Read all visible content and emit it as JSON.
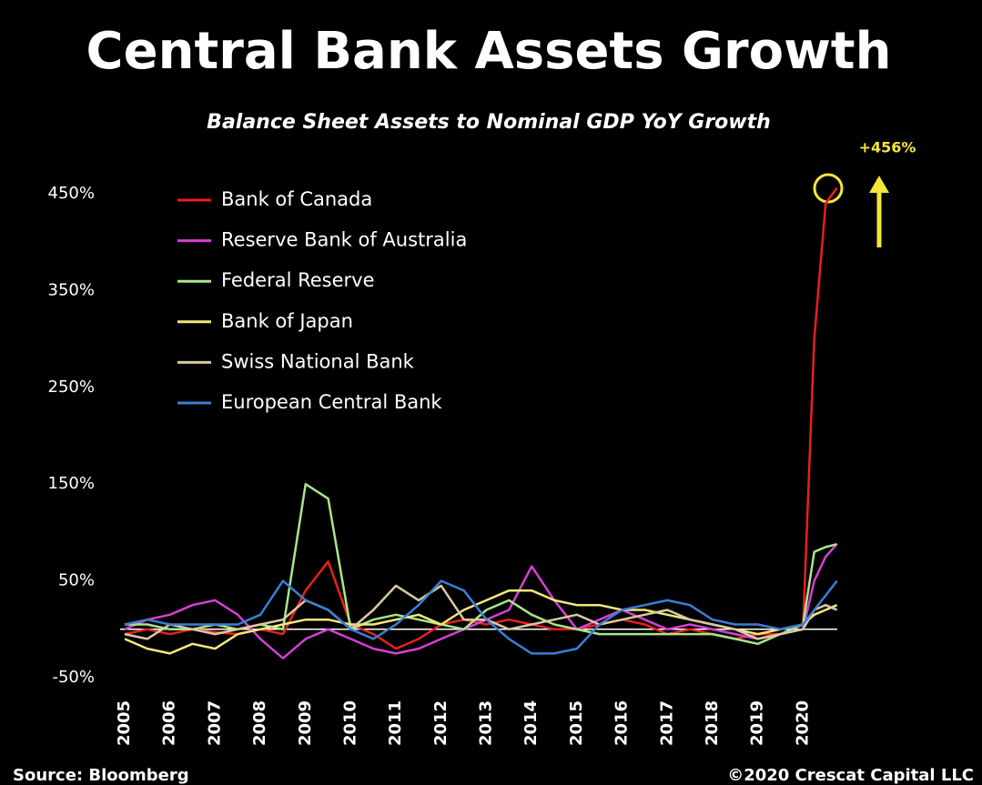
{
  "chart_data": {
    "type": "line",
    "title": "Central Bank Assets Growth",
    "subtitle": "Balance Sheet Assets to Nominal GDP YoY Growth",
    "annotation": "+456%",
    "source": "Source: Bloomberg",
    "credit": "©2020 Crescat Capital LLC",
    "x": [
      2005,
      2005.5,
      2006,
      2006.5,
      2007,
      2007.5,
      2008,
      2008.5,
      2009,
      2009.5,
      2010,
      2010.5,
      2011,
      2011.5,
      2012,
      2012.5,
      2013,
      2013.5,
      2014,
      2014.5,
      2015,
      2015.5,
      2016,
      2016.5,
      2017,
      2017.5,
      2018,
      2018.5,
      2019,
      2019.5,
      2020,
      2020.25,
      2020.5,
      2020.75
    ],
    "xlim": [
      2005,
      2021
    ],
    "xticks": [
      2005,
      2006,
      2007,
      2008,
      2009,
      2010,
      2011,
      2012,
      2013,
      2014,
      2015,
      2016,
      2017,
      2018,
      2019,
      2020
    ],
    "ylim": [
      -50,
      450
    ],
    "yticks": [
      {
        "value": -50,
        "label": "-50%"
      },
      {
        "value": 50,
        "label": "50%"
      },
      {
        "value": 150,
        "label": "150%"
      },
      {
        "value": 250,
        "label": "250%"
      },
      {
        "value": 350,
        "label": "350%"
      },
      {
        "value": 450,
        "label": "450%"
      }
    ],
    "baseline": 0,
    "grid": false,
    "legend": "top-left",
    "series": [
      {
        "name": "Bank of Canada",
        "color": "#e8201c",
        "values": [
          -5,
          0,
          -5,
          0,
          -3,
          -5,
          0,
          -5,
          40,
          70,
          5,
          -5,
          -20,
          -10,
          5,
          10,
          5,
          10,
          5,
          0,
          0,
          5,
          10,
          5,
          -5,
          0,
          -5,
          -10,
          -5,
          -5,
          0,
          300,
          440,
          456
        ]
      },
      {
        "name": "Reserve Bank of Australia",
        "color": "#d63fd6",
        "values": [
          0,
          10,
          15,
          25,
          30,
          15,
          -10,
          -30,
          -10,
          0,
          -10,
          -20,
          -25,
          -20,
          -10,
          0,
          10,
          20,
          65,
          30,
          0,
          10,
          20,
          10,
          0,
          5,
          0,
          -5,
          -10,
          -5,
          0,
          50,
          75,
          88
        ]
      },
      {
        "name": "Federal Reserve",
        "color": "#a8e68a",
        "values": [
          5,
          5,
          0,
          0,
          5,
          0,
          5,
          0,
          150,
          135,
          0,
          10,
          15,
          10,
          5,
          0,
          20,
          30,
          15,
          5,
          0,
          -5,
          -5,
          -5,
          -5,
          -5,
          -5,
          -10,
          -15,
          -5,
          5,
          80,
          85,
          88
        ]
      },
      {
        "name": "Bank of Japan",
        "color": "#f2e87a",
        "values": [
          -10,
          -20,
          -25,
          -15,
          -20,
          -5,
          0,
          5,
          10,
          10,
          5,
          5,
          10,
          15,
          5,
          20,
          30,
          40,
          40,
          30,
          25,
          25,
          20,
          20,
          15,
          10,
          5,
          0,
          -5,
          0,
          5,
          15,
          20,
          25
        ]
      },
      {
        "name": "Swiss National Bank",
        "color": "#d9c9a0",
        "values": [
          -5,
          -10,
          5,
          0,
          -5,
          0,
          5,
          10,
          30,
          20,
          0,
          20,
          45,
          30,
          45,
          10,
          10,
          0,
          5,
          10,
          15,
          5,
          10,
          15,
          20,
          10,
          5,
          0,
          -10,
          -5,
          0,
          20,
          25,
          20
        ]
      },
      {
        "name": "European Central Bank",
        "color": "#3a7fd6",
        "values": [
          5,
          10,
          5,
          5,
          5,
          5,
          15,
          50,
          30,
          20,
          0,
          -10,
          5,
          25,
          50,
          40,
          10,
          -10,
          -25,
          -25,
          -20,
          5,
          20,
          25,
          30,
          25,
          10,
          5,
          5,
          0,
          5,
          20,
          35,
          50
        ]
      }
    ]
  }
}
